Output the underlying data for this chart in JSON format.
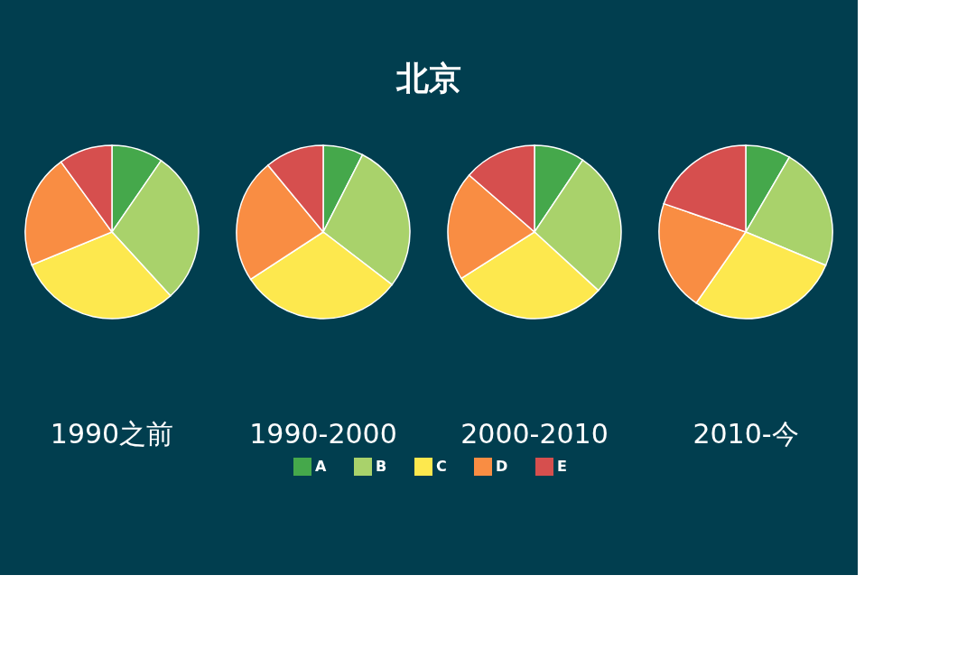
{
  "chart_data": {
    "type": "pie",
    "title": "北京",
    "categories": [
      "A",
      "B",
      "C",
      "D",
      "E"
    ],
    "colors": [
      "#45a84b",
      "#a9d26b",
      "#fde84e",
      "#f98d43",
      "#d64f4e"
    ],
    "legend": "bottom",
    "series": [
      {
        "name": "1990之前",
        "values": [
          9.6,
          28.6,
          30.6,
          21.2,
          10.0
        ]
      },
      {
        "name": "1990-2000",
        "values": [
          7.5,
          27.9,
          30.4,
          23.2,
          11.0
        ]
      },
      {
        "name": "2000-2010",
        "values": [
          9.4,
          27.4,
          29.2,
          20.4,
          13.6
        ]
      },
      {
        "name": "2010-今",
        "values": [
          8.4,
          22.9,
          28.4,
          20.6,
          19.7
        ]
      }
    ]
  }
}
